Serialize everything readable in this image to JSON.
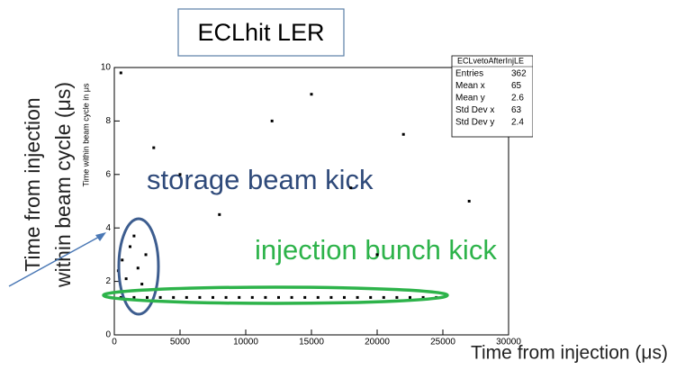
{
  "chart_data": {
    "type": "scatter",
    "title": "ECLhit LER",
    "y_label": "Time within beam cycle in μs",
    "outer_y_label": [
      "Time from injection",
      "within beam cycle (μs)"
    ],
    "x_label": "Time from injection (μs)",
    "annotations": [
      "storage beam kick",
      "injection bunch kick"
    ],
    "stats": {
      "name": "ECLvetoAfterInjLE",
      "rows": [
        [
          "Entries",
          "362"
        ],
        [
          "Mean x",
          "65"
        ],
        [
          "Mean y",
          "2.6"
        ],
        [
          "Std Dev x",
          "63"
        ],
        [
          "Std Dev y",
          "2.4"
        ]
      ]
    },
    "xlim": [
      0,
      30000
    ],
    "xticks": [
      0,
      5000,
      10000,
      15000,
      20000,
      25000,
      30000
    ],
    "ylim": [
      0,
      10
    ],
    "yticks": [
      0,
      2,
      4,
      6,
      8,
      10
    ],
    "series": [
      {
        "name": "ECLhit",
        "color": "#000000",
        "x": [
          500,
          1500,
          2500,
          3500,
          4500,
          5500,
          6500,
          7500,
          8500,
          9500,
          10500,
          11500,
          12500,
          13500,
          14500,
          15500,
          16500,
          17500,
          18500,
          19500,
          20500,
          21500,
          22500,
          23500,
          24500,
          600,
          1200,
          1800,
          900,
          2400,
          1500,
          300,
          2100,
          5000,
          12000,
          20000,
          8000,
          15000,
          27000,
          3000,
          22000,
          500,
          18000
        ],
        "y": [
          1.4,
          1.4,
          1.4,
          1.4,
          1.4,
          1.4,
          1.4,
          1.4,
          1.4,
          1.4,
          1.4,
          1.4,
          1.4,
          1.4,
          1.4,
          1.4,
          1.4,
          1.4,
          1.4,
          1.4,
          1.4,
          1.4,
          1.4,
          1.4,
          1.4,
          2.8,
          3.3,
          2.5,
          2.1,
          3.0,
          3.7,
          2.4,
          1.9,
          6,
          8,
          3,
          4.5,
          9,
          5,
          7,
          7.5,
          9.8,
          5.5
        ]
      }
    ]
  }
}
